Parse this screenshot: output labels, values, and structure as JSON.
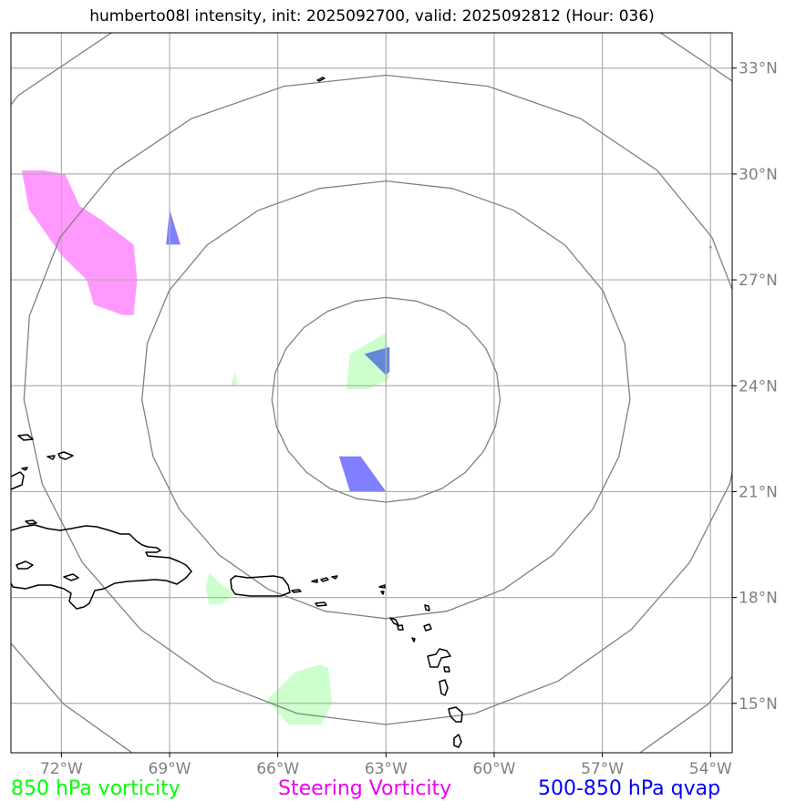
{
  "title": "humberto08l intensity, init: 2025092700, valid: 2025092812 (Hour: 036)",
  "map": {
    "lon_range": [
      -73.4,
      -53.4
    ],
    "lat_range": [
      13.6,
      34.0
    ],
    "lon_ticks": [
      {
        "value": -72,
        "label": "72°W"
      },
      {
        "value": -69,
        "label": "69°W"
      },
      {
        "value": -66,
        "label": "66°W"
      },
      {
        "value": -63,
        "label": "63°W"
      },
      {
        "value": -60,
        "label": "60°W"
      },
      {
        "value": -57,
        "label": "57°W"
      },
      {
        "value": -54,
        "label": "54°W"
      }
    ],
    "lat_ticks": [
      {
        "value": 33,
        "label": "33°N"
      },
      {
        "value": 30,
        "label": "30°N"
      },
      {
        "value": 27,
        "label": "27°N"
      },
      {
        "value": 24,
        "label": "24°N"
      },
      {
        "value": 21,
        "label": "21°N"
      },
      {
        "value": 18,
        "label": "18°N"
      },
      {
        "value": 15,
        "label": "15°N"
      }
    ],
    "range_rings": {
      "center": {
        "lon": -63.0,
        "lat": 23.6
      },
      "radii_deg": [
        2.9,
        6.2,
        9.2,
        12.2
      ],
      "color": "#808080"
    },
    "colors": {
      "vort850": "#ccffcc",
      "steering": "#ff99ff",
      "qvap": "#0000ff",
      "overlap": "#4060dd",
      "coast": "#000000",
      "grid": "#b0b0b0",
      "tick_label": "#808080"
    },
    "vort850_areas": [
      [
        [
          -64.0,
          24.9
        ],
        [
          -63.0,
          25.5
        ],
        [
          -62.9,
          24.2
        ],
        [
          -63.5,
          23.9
        ],
        [
          -64.1,
          23.9
        ]
      ],
      [
        [
          -67.9,
          18.7
        ],
        [
          -67.6,
          18.4
        ],
        [
          -67.2,
          18.1
        ],
        [
          -67.6,
          17.8
        ],
        [
          -67.9,
          17.8
        ],
        [
          -68.0,
          18.3
        ]
      ],
      [
        [
          -67.3,
          24.0
        ],
        [
          -67.2,
          24.4
        ],
        [
          -67.1,
          24.0
        ]
      ],
      [
        [
          -66.3,
          15.1
        ],
        [
          -65.5,
          15.9
        ],
        [
          -64.8,
          16.1
        ],
        [
          -64.6,
          16.0
        ],
        [
          -64.5,
          15.0
        ],
        [
          -64.8,
          14.4
        ],
        [
          -65.7,
          14.4
        ]
      ]
    ],
    "steering_areas": [
      [
        [
          -73.1,
          30.1
        ],
        [
          -72.5,
          30.1
        ],
        [
          -71.9,
          30.0
        ],
        [
          -71.5,
          29.1
        ],
        [
          -70.9,
          28.7
        ],
        [
          -70.0,
          28.0
        ],
        [
          -69.9,
          27.0
        ],
        [
          -70.0,
          26.0
        ],
        [
          -70.3,
          26.0
        ],
        [
          -71.1,
          26.3
        ],
        [
          -71.3,
          27.0
        ],
        [
          -72.0,
          27.7
        ],
        [
          -72.9,
          29.0
        ]
      ]
    ],
    "qvap_areas": [
      [
        [
          -64.3,
          22.0
        ],
        [
          -63.7,
          22.0
        ],
        [
          -63.0,
          21.0
        ],
        [
          -64.0,
          21.0
        ]
      ],
      [
        [
          -69.0,
          29.0
        ],
        [
          -68.7,
          28.0
        ],
        [
          -69.1,
          28.0
        ]
      ],
      [
        [
          -54.0,
          28.0
        ],
        [
          -53.95,
          27.9
        ],
        [
          -54.05,
          27.9
        ]
      ]
    ],
    "overlap_areas": [
      [
        [
          -63.6,
          24.9
        ],
        [
          -62.9,
          25.1
        ],
        [
          -62.9,
          24.4
        ],
        [
          -63.0,
          24.3
        ]
      ]
    ]
  },
  "legend": [
    {
      "label": "850 hPa vorticity",
      "color": "#00ff00"
    },
    {
      "label": "Steering Vorticity",
      "color": "#ee00ee"
    },
    {
      "label": "500-850 hPa qvap",
      "color": "#0000ff"
    }
  ]
}
